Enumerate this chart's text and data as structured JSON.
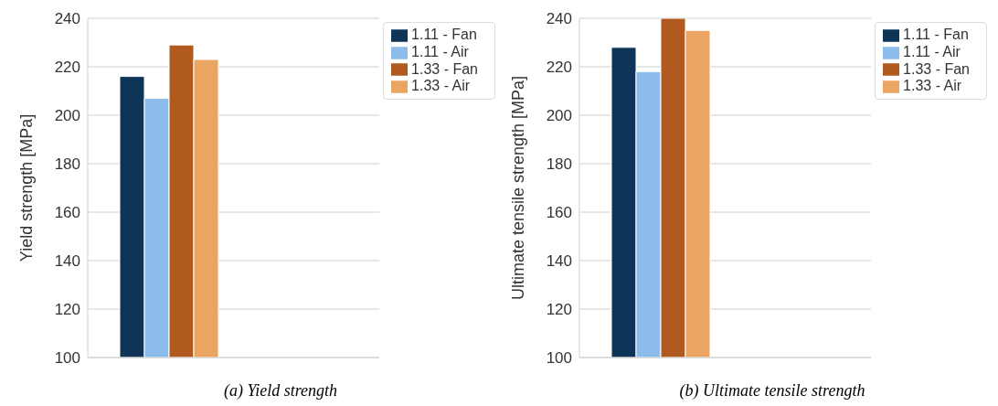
{
  "chart_data": [
    {
      "type": "bar",
      "categories": [
        null
      ],
      "ylabel": "Yield strength [MPa]",
      "ylim": [
        100,
        240
      ],
      "yticks": [
        100,
        120,
        140,
        160,
        180,
        200,
        220,
        240
      ],
      "grid": "y",
      "legend": "top right",
      "series": [
        {
          "name": "1.11 - Fan",
          "color": "#0e3458",
          "values": [
            216
          ]
        },
        {
          "name": "1.11 - Air",
          "color": "#8bbcec",
          "values": [
            207
          ]
        },
        {
          "name": "1.33 - Fan",
          "color": "#b05a20",
          "values": [
            229
          ]
        },
        {
          "name": "1.33 - Air",
          "color": "#eba562",
          "values": [
            223
          ]
        }
      ],
      "annotations": [
        "(a) Yield strength"
      ]
    },
    {
      "type": "bar",
      "categories": [
        null
      ],
      "ylabel": "Ultimate tensile strength [MPa]",
      "ylim": [
        100,
        240
      ],
      "yticks": [
        100,
        120,
        140,
        160,
        180,
        200,
        220,
        240
      ],
      "grid": "y",
      "legend": "top right",
      "series": [
        {
          "name": "1.11 - Fan",
          "color": "#0e3458",
          "values": [
            228
          ]
        },
        {
          "name": "1.11 - Air",
          "color": "#8bbcec",
          "values": [
            218
          ]
        },
        {
          "name": "1.33 - Fan",
          "color": "#b05a20",
          "values": [
            240
          ]
        },
        {
          "name": "1.33 - Air",
          "color": "#eba562",
          "values": [
            235
          ]
        }
      ],
      "annotations": [
        "(b) Ultimate tensile strength"
      ]
    }
  ]
}
